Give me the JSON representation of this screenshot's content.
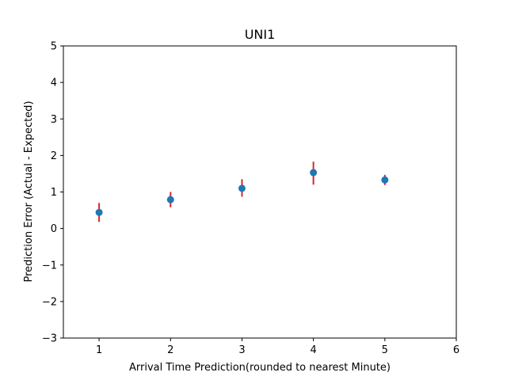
{
  "chart_data": {
    "type": "scatter",
    "title": "UNI1",
    "xlabel": "Arrival Time Prediction(rounded to nearest Minute)",
    "ylabel": "Prediction Error (Actual - Expected)",
    "xlim": [
      0.5,
      6
    ],
    "ylim": [
      -3,
      5
    ],
    "xticks": [
      1,
      2,
      3,
      4,
      5,
      6
    ],
    "yticks": [
      -3,
      -2,
      -1,
      0,
      1,
      2,
      3,
      4,
      5
    ],
    "xtick_labels": [
      "1",
      "2",
      "3",
      "4",
      "5",
      "6"
    ],
    "ytick_labels": [
      "−3",
      "−2",
      "−1",
      "0",
      "1",
      "2",
      "3",
      "4",
      "5"
    ],
    "grid": false,
    "legend": "none",
    "series": [
      {
        "x": [
          1,
          2,
          3,
          4,
          5
        ],
        "y": [
          0.44,
          0.79,
          1.1,
          1.53,
          1.33
        ],
        "error_low": [
          0.18,
          0.58,
          0.87,
          1.2,
          1.19
        ],
        "error_high": [
          0.7,
          1.0,
          1.35,
          1.83,
          1.47
        ],
        "marker_color": "#1f77b4",
        "errorbar_color": "#d62728"
      }
    ]
  }
}
